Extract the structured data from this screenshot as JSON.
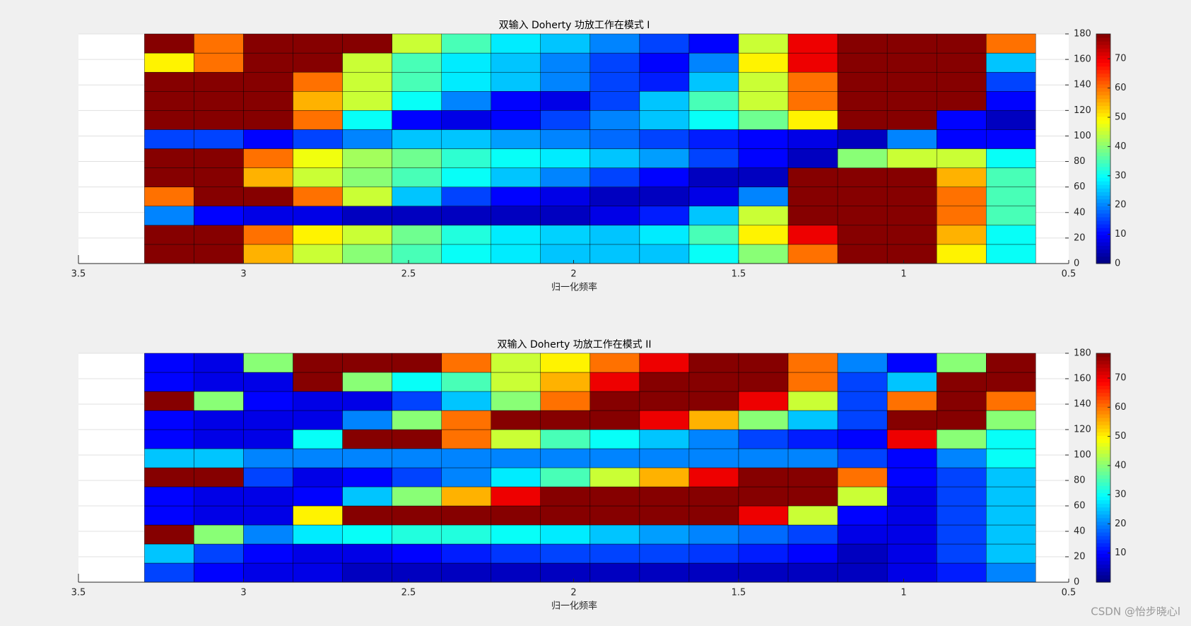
{
  "chart_data": [
    {
      "type": "heatmap",
      "title": "双输入 Doherty 功放工作在模式 I",
      "x_label": "归一化频率",
      "xlim": [
        3.5,
        0.5
      ],
      "xticks": [
        3.5,
        3,
        2.5,
        2,
        1.5,
        1,
        0.5
      ],
      "ylim": [
        0,
        180
      ],
      "yticks": [
        0,
        20,
        40,
        60,
        80,
        100,
        120,
        140,
        160,
        180
      ],
      "grid": true,
      "colormap": "jet",
      "clim": [
        0,
        78.5
      ],
      "cticks": [
        0,
        10,
        20,
        30,
        40,
        50,
        60,
        70
      ],
      "x": [
        3.225,
        3.075,
        2.925,
        2.775,
        2.625,
        2.475,
        2.325,
        2.175,
        2.025,
        1.875,
        1.725,
        1.575,
        1.425,
        1.275,
        1.125,
        0.975,
        0.825,
        0.675
      ],
      "y": [
        7.5,
        22.5,
        37.5,
        52.5,
        67.5,
        82.5,
        97.5,
        112.5,
        127.5,
        142.5,
        157.5,
        172.5
      ],
      "z": [
        [
          78,
          78,
          55,
          45,
          40,
          35,
          30,
          28,
          25,
          25,
          25,
          30,
          40,
          60,
          78,
          78,
          50,
          30
        ],
        [
          78,
          78,
          60,
          50,
          45,
          38,
          32,
          28,
          26,
          25,
          28,
          35,
          50,
          70,
          78,
          78,
          55,
          30
        ],
        [
          20,
          10,
          8,
          8,
          5,
          5,
          5,
          5,
          5,
          8,
          12,
          25,
          45,
          78,
          78,
          78,
          60,
          35
        ],
        [
          60,
          78,
          78,
          60,
          45,
          25,
          15,
          10,
          8,
          5,
          5,
          8,
          20,
          78,
          78,
          78,
          60,
          35
        ],
        [
          78,
          78,
          55,
          45,
          40,
          35,
          30,
          25,
          20,
          15,
          10,
          5,
          5,
          78,
          78,
          78,
          55,
          35
        ],
        [
          78,
          78,
          60,
          48,
          42,
          38,
          33,
          30,
          28,
          25,
          22,
          15,
          10,
          5,
          40,
          45,
          45,
          30
        ],
        [
          15,
          15,
          10,
          15,
          20,
          25,
          25,
          22,
          20,
          18,
          15,
          12,
          10,
          8,
          5,
          20,
          10,
          10
        ],
        [
          78,
          78,
          78,
          60,
          30,
          10,
          8,
          10,
          15,
          20,
          25,
          30,
          38,
          50,
          78,
          78,
          10,
          5
        ],
        [
          78,
          78,
          78,
          55,
          45,
          30,
          20,
          10,
          8,
          15,
          25,
          35,
          45,
          60,
          78,
          78,
          78,
          10
        ],
        [
          78,
          78,
          78,
          60,
          45,
          35,
          28,
          25,
          20,
          15,
          12,
          25,
          45,
          60,
          78,
          78,
          78,
          15
        ],
        [
          50,
          60,
          78,
          78,
          45,
          35,
          28,
          25,
          20,
          15,
          10,
          20,
          50,
          70,
          78,
          78,
          78,
          25
        ],
        [
          78,
          60,
          78,
          78,
          78,
          45,
          35,
          28,
          25,
          20,
          15,
          10,
          45,
          70,
          78,
          78,
          78,
          60
        ]
      ]
    },
    {
      "type": "heatmap",
      "title": "双输入 Doherty 功放工作在模式 II",
      "x_label": "归一化频率",
      "xlim": [
        3.5,
        0.5
      ],
      "xticks": [
        3.5,
        3,
        2.5,
        2,
        1.5,
        1,
        0.5
      ],
      "ylim": [
        0,
        180
      ],
      "yticks": [
        0,
        20,
        40,
        60,
        80,
        100,
        120,
        140,
        160,
        180
      ],
      "grid": true,
      "colormap": "jet",
      "clim": [
        0,
        78.5
      ],
      "cticks": [
        10,
        20,
        30,
        40,
        50,
        60,
        70
      ],
      "x": [
        3.225,
        3.075,
        2.925,
        2.775,
        2.625,
        2.475,
        2.325,
        2.175,
        2.025,
        1.875,
        1.725,
        1.575,
        1.425,
        1.275,
        1.125,
        0.975,
        0.825,
        0.675
      ],
      "y": [
        7.5,
        22.5,
        37.5,
        52.5,
        67.5,
        82.5,
        97.5,
        112.5,
        127.5,
        142.5,
        157.5,
        172.5
      ],
      "z": [
        [
          15,
          10,
          8,
          8,
          5,
          5,
          5,
          5,
          5,
          5,
          5,
          5,
          5,
          5,
          5,
          8,
          12,
          20
        ],
        [
          25,
          15,
          10,
          8,
          8,
          10,
          12,
          14,
          15,
          15,
          15,
          14,
          12,
          10,
          5,
          8,
          15,
          25
        ],
        [
          78,
          40,
          20,
          28,
          30,
          32,
          32,
          30,
          28,
          25,
          22,
          20,
          18,
          15,
          8,
          8,
          15,
          25
        ],
        [
          10,
          8,
          8,
          50,
          78,
          78,
          78,
          78,
          78,
          78,
          78,
          78,
          70,
          45,
          10,
          8,
          15,
          25
        ],
        [
          10,
          8,
          8,
          10,
          25,
          40,
          55,
          70,
          78,
          78,
          78,
          78,
          78,
          78,
          45,
          8,
          15,
          25
        ],
        [
          78,
          78,
          15,
          8,
          10,
          15,
          20,
          28,
          35,
          45,
          55,
          70,
          78,
          78,
          60,
          10,
          15,
          25
        ],
        [
          25,
          25,
          20,
          20,
          20,
          20,
          20,
          20,
          20,
          20,
          20,
          20,
          20,
          20,
          15,
          10,
          20,
          30
        ],
        [
          10,
          8,
          8,
          30,
          78,
          78,
          60,
          45,
          35,
          30,
          25,
          20,
          15,
          12,
          10,
          70,
          40,
          30
        ],
        [
          10,
          8,
          8,
          8,
          20,
          40,
          60,
          78,
          78,
          78,
          70,
          55,
          40,
          25,
          15,
          78,
          78,
          40
        ],
        [
          78,
          40,
          10,
          8,
          8,
          15,
          25,
          40,
          60,
          78,
          78,
          78,
          70,
          45,
          15,
          60,
          78,
          60
        ],
        [
          10,
          8,
          8,
          78,
          40,
          30,
          35,
          45,
          55,
          70,
          78,
          78,
          78,
          60,
          15,
          25,
          78,
          78
        ],
        [
          10,
          8,
          40,
          78,
          78,
          78,
          60,
          45,
          50,
          60,
          70,
          78,
          78,
          60,
          20,
          10,
          40,
          78
        ]
      ]
    }
  ],
  "watermark": "CSDN @怡步晓心l"
}
